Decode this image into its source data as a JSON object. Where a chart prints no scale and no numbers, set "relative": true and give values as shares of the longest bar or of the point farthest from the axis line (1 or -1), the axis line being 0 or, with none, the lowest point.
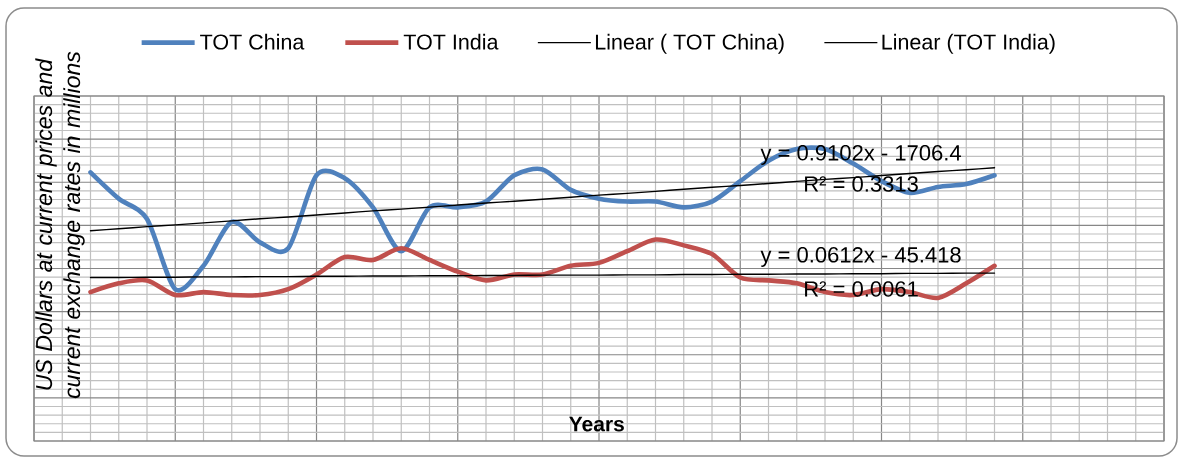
{
  "chart_data": {
    "type": "line",
    "relative": true,
    "xlabel": "Years",
    "ylabel": "US Dollars at current prices and current exchange rates in millions",
    "categories": [
      null,
      null,
      null,
      null,
      null,
      null,
      null,
      null,
      null,
      null,
      null,
      null,
      null,
      null,
      null,
      null,
      null,
      null,
      null,
      null,
      null,
      null,
      null,
      null,
      null,
      null,
      null,
      null,
      null,
      null,
      null,
      null,
      null
    ],
    "series": [
      {
        "name": "TOT China",
        "color": "#4f81bd",
        "values": [
          0.92,
          0.83,
          0.76,
          0.52,
          0.6,
          0.75,
          0.68,
          0.66,
          0.91,
          0.9,
          0.8,
          0.65,
          0.8,
          0.8,
          0.82,
          0.91,
          0.93,
          0.86,
          0.83,
          0.82,
          0.82,
          0.8,
          0.82,
          0.89,
          0.96,
          1,
          1,
          0.95,
          0.89,
          0.85,
          0.87,
          0.88,
          0.91
        ]
      },
      {
        "name": "TOT India",
        "color": "#c0504d",
        "values": [
          0.51,
          0.54,
          0.55,
          0.5,
          0.51,
          0.5,
          0.5,
          0.52,
          0.57,
          0.63,
          0.62,
          0.66,
          0.62,
          0.58,
          0.55,
          0.57,
          0.57,
          0.6,
          0.61,
          0.65,
          0.69,
          0.67,
          0.64,
          0.56,
          0.55,
          0.54,
          0.51,
          0.5,
          0.52,
          0.51,
          0.49,
          0.54,
          0.6
        ]
      },
      {
        "name": "Linear ( TOT China)",
        "color": "#000000",
        "values": [
          0.72,
          0.727,
          0.734,
          0.74,
          0.747,
          0.754,
          0.761,
          0.767,
          0.774,
          0.781,
          0.788,
          0.794,
          0.801,
          0.808,
          0.815,
          0.821,
          0.828,
          0.835,
          0.842,
          0.848,
          0.855,
          0.862,
          0.869,
          0.875,
          0.882,
          0.889,
          0.896,
          0.902,
          0.909,
          0.916,
          0.923,
          0.929,
          0.936
        ]
      },
      {
        "name": "Linear (TOT India)",
        "color": "#000000",
        "values": [
          0.56,
          0.56,
          0.561,
          0.561,
          0.562,
          0.562,
          0.563,
          0.563,
          0.564,
          0.564,
          0.565,
          0.565,
          0.566,
          0.566,
          0.567,
          0.567,
          0.568,
          0.568,
          0.568,
          0.569,
          0.569,
          0.57,
          0.57,
          0.571,
          0.571,
          0.572,
          0.572,
          0.573,
          0.573,
          0.574,
          0.574,
          0.575,
          0.575
        ]
      }
    ],
    "annotations": [
      "y = 0.9102x - 1706.4",
      "R² = 0.3313",
      "y = 0.0612x - 45.418",
      "R² = 0.0061"
    ],
    "legend": "top",
    "grid": true,
    "tick_labels": false
  }
}
